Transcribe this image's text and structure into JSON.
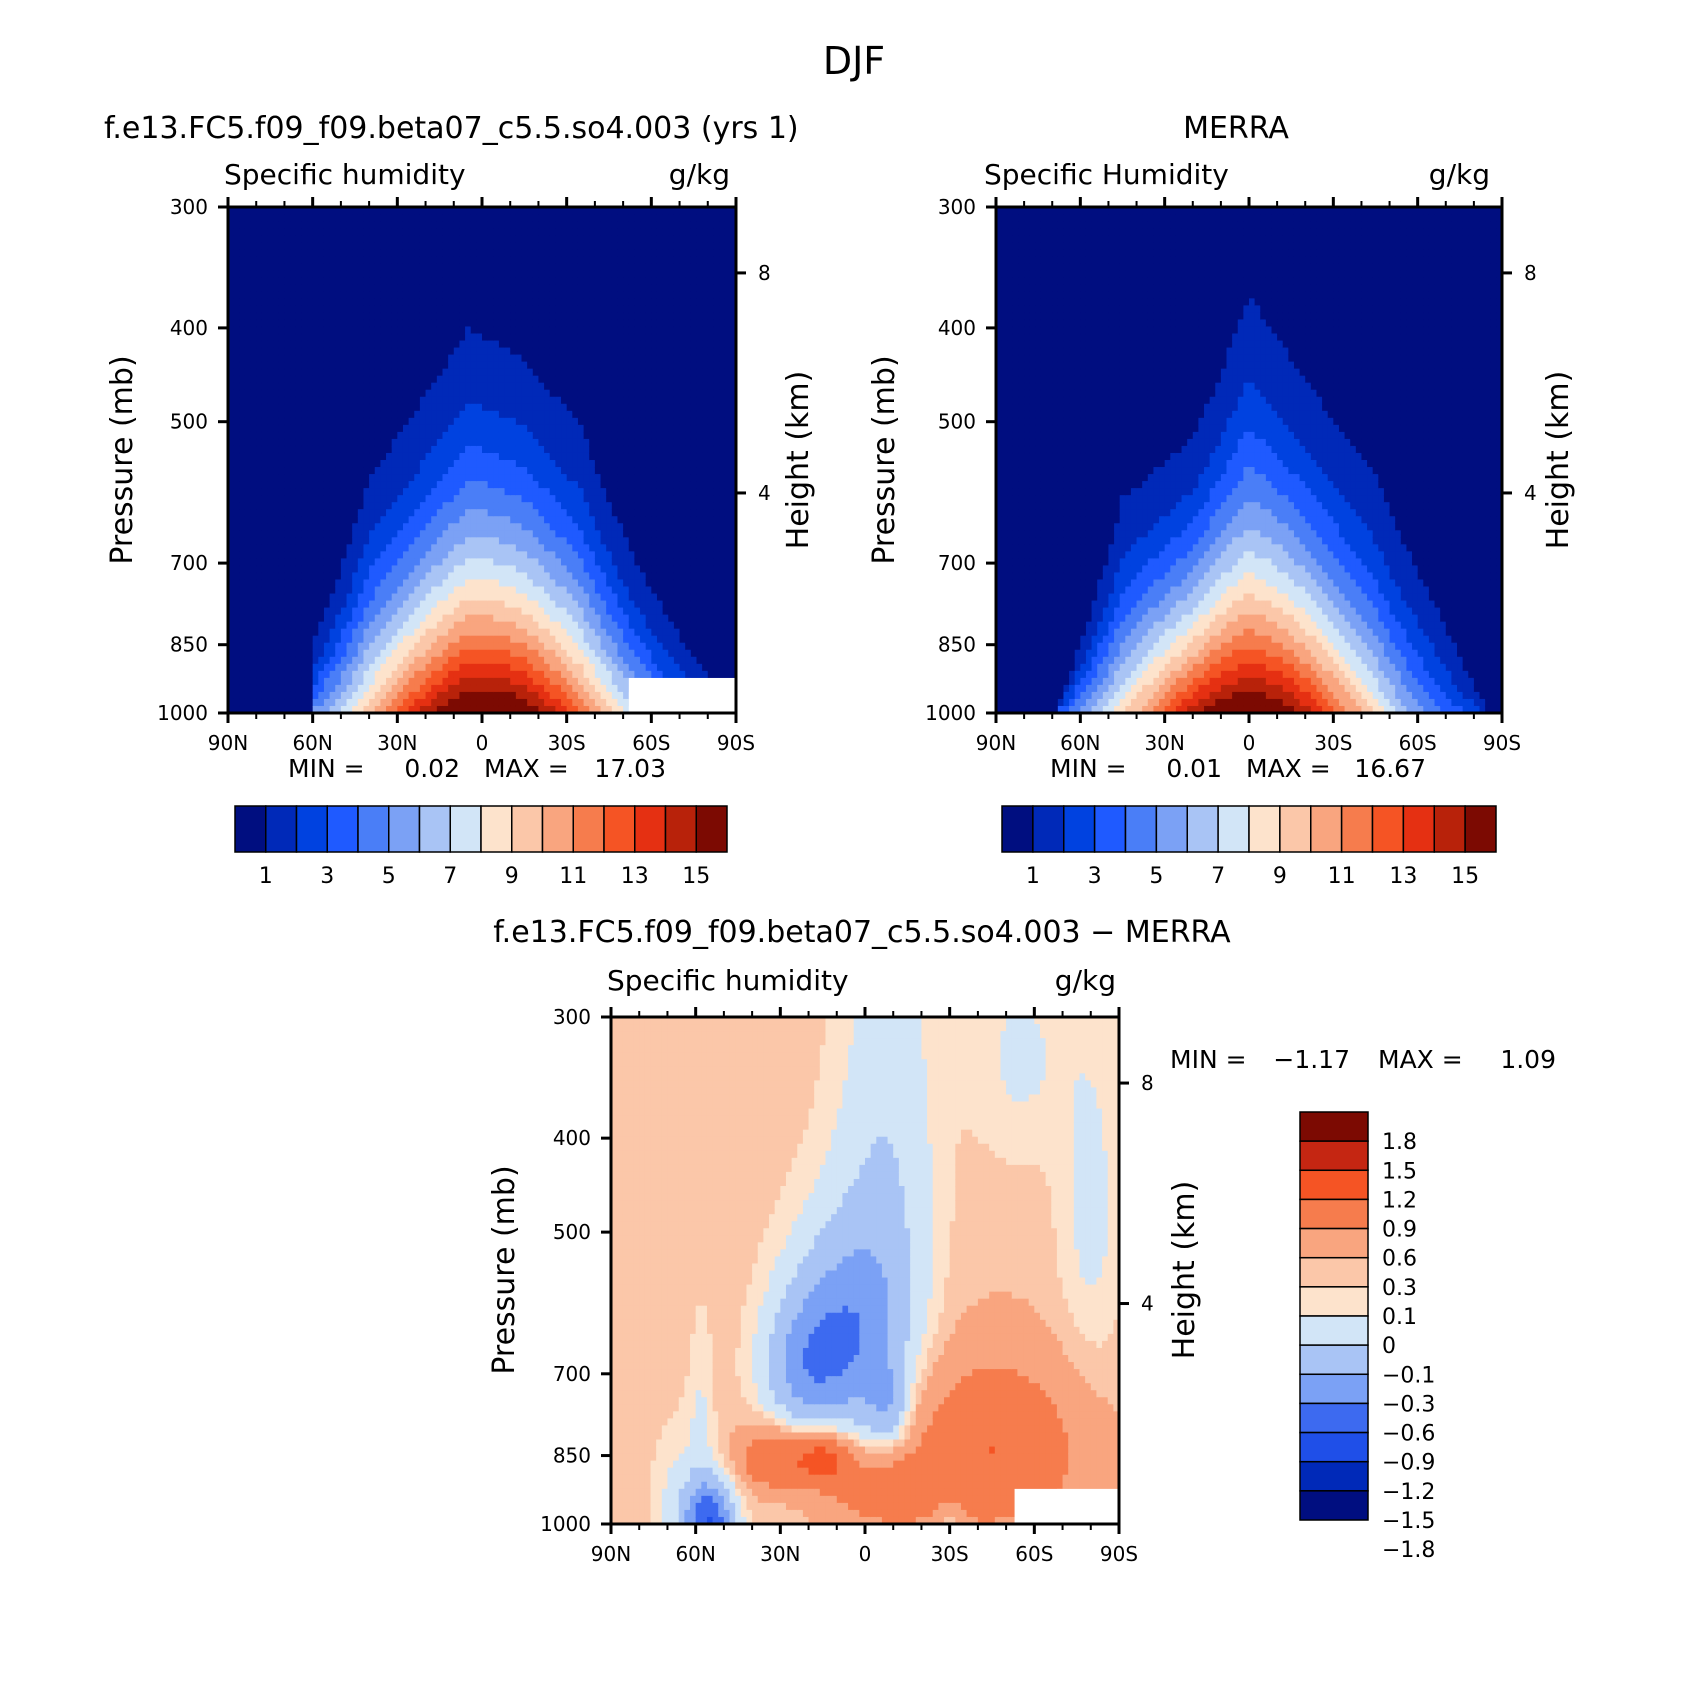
{
  "figure_title": "DJF",
  "colors": {
    "seq": [
      "#000e80",
      "#0029b8",
      "#0042e0",
      "#1f5aff",
      "#4a7ef7",
      "#7ba1f5",
      "#a9c4f5",
      "#d2e5f7",
      "#fde3cc",
      "#fbc7a9",
      "#f9a57f",
      "#f67c4d",
      "#f55424",
      "#e53012",
      "#b8220a",
      "#7c0a02"
    ],
    "div": [
      "#000e80",
      "#0029b8",
      "#1f4fe8",
      "#3d6af0",
      "#7ba1f5",
      "#a9c4f5",
      "#d2e5f7",
      "#fde3cc",
      "#fbc7a9",
      "#f9a57f",
      "#f67c4d",
      "#f55424",
      "#c52612",
      "#7c0a02"
    ]
  },
  "chart_data": [
    {
      "id": "model",
      "type": "heatmap",
      "title": "f.e13.FC5.f09_f09.beta07_c5.5.so4.003 (yrs 1)",
      "left_label": "Specific humidity",
      "right_label": "g/kg",
      "xlabel": "",
      "ylabel": "Pressure (mb)",
      "ylabel_right": "Height (km)",
      "x_ticks": [
        "90N",
        "60N",
        "30N",
        "0",
        "30S",
        "60S",
        "90S"
      ],
      "y_ticks": [
        "300",
        "400",
        "500",
        "700",
        "850",
        "1000"
      ],
      "y_ticks_right": [
        "8",
        "4"
      ],
      "min_label": "MIN =",
      "min_value": "0.02",
      "max_label": "MAX =",
      "max_value": "17.03",
      "colorbar_labels": [
        "1",
        "3",
        "5",
        "7",
        "9",
        "11",
        "13",
        "15"
      ],
      "contour_levels": [
        1,
        2,
        3,
        4,
        5,
        6,
        7,
        8,
        9,
        10,
        11,
        12,
        13,
        14,
        15
      ],
      "peak": 17.03,
      "peak_lat": -2,
      "tops_pressure": [
        {
          "lat": 60,
          "top": 850
        },
        {
          "lat": 40,
          "top": 570
        },
        {
          "lat": 20,
          "top": 470
        },
        {
          "lat": 5,
          "top": 400
        },
        {
          "lat": -15,
          "top": 430
        },
        {
          "lat": -35,
          "top": 505
        },
        {
          "lat": -55,
          "top": 700
        },
        {
          "lat": -80,
          "top": 920
        }
      ],
      "missing": {
        "lat_from": -52,
        "lat_to": -90,
        "p_from": 920,
        "p_to": 1000
      }
    },
    {
      "id": "obs",
      "type": "heatmap",
      "title": "MERRA",
      "left_label": "Specific Humidity",
      "right_label": "g/kg",
      "xlabel": "",
      "ylabel": "Pressure (mb)",
      "ylabel_right": "Height (km)",
      "x_ticks": [
        "90N",
        "60N",
        "30N",
        "0",
        "30S",
        "60S",
        "90S"
      ],
      "y_ticks": [
        "300",
        "400",
        "500",
        "700",
        "850",
        "1000"
      ],
      "y_ticks_right": [
        "8",
        "4"
      ],
      "min_label": "MIN =",
      "min_value": "0.01",
      "max_label": "MAX =",
      "max_value": "16.67",
      "colorbar_labels": [
        "1",
        "3",
        "5",
        "7",
        "9",
        "11",
        "13",
        "15"
      ],
      "contour_levels": [
        1,
        2,
        3,
        4,
        5,
        6,
        7,
        8,
        9,
        10,
        11,
        12,
        13,
        14,
        15
      ],
      "peak": 16.67,
      "peak_lat": 0,
      "tops_pressure": [
        {
          "lat": 68,
          "top": 980
        },
        {
          "lat": 45,
          "top": 600
        },
        {
          "lat": 20,
          "top": 520
        },
        {
          "lat": 0,
          "top": 370
        },
        {
          "lat": -20,
          "top": 450
        },
        {
          "lat": -45,
          "top": 570
        },
        {
          "lat": -65,
          "top": 760
        },
        {
          "lat": -85,
          "top": 990
        }
      ],
      "missing": null
    },
    {
      "id": "diff",
      "type": "heatmap",
      "title": "f.e13.FC5.f09_f09.beta07_c5.5.so4.003 − MERRA",
      "left_label": "Specific humidity",
      "right_label": "g/kg",
      "xlabel": "",
      "ylabel": "Pressure (mb)",
      "ylabel_right": "Height (km)",
      "x_ticks": [
        "90N",
        "60N",
        "30N",
        "0",
        "30S",
        "60S",
        "90S"
      ],
      "y_ticks": [
        "300",
        "400",
        "500",
        "700",
        "850",
        "1000"
      ],
      "y_ticks_right": [
        "8",
        "4"
      ],
      "min_label": "MIN =",
      "min_value": "−1.17",
      "max_label": "MAX =",
      "max_value": "1.09",
      "colorbar_labels": [
        "1.8",
        "1.5",
        "1.2",
        "0.9",
        "0.6",
        "0.3",
        "0.1",
        "0",
        "−0.1",
        "−0.3",
        "−0.6",
        "−0.9",
        "−1.2",
        "−1.5",
        "−1.8"
      ],
      "contour_levels": [
        -1.8,
        -1.5,
        -1.2,
        -0.9,
        -0.6,
        -0.3,
        -0.1,
        0,
        0.1,
        0.3,
        0.6,
        0.9,
        1.2,
        1.5,
        1.8
      ],
      "field": {
        "background": 0.05,
        "blobs": [
          {
            "lat": 5,
            "p": 640,
            "amp": -0.85,
            "slat": 14,
            "sp": 110
          },
          {
            "lat": -8,
            "p": 760,
            "amp": -0.45,
            "slat": 5,
            "sp": 50
          },
          {
            "lat": 22,
            "p": 690,
            "amp": -0.55,
            "slat": 10,
            "sp": 80
          },
          {
            "lat": -8,
            "p": 420,
            "amp": -0.3,
            "slat": 12,
            "sp": 160
          },
          {
            "lat": -55,
            "p": 330,
            "amp": -0.18,
            "slat": 12,
            "sp": 60
          },
          {
            "lat": -80,
            "p": 480,
            "amp": -0.2,
            "slat": 8,
            "sp": 140
          },
          {
            "lat": 15,
            "p": 855,
            "amp": 0.75,
            "slat": 7,
            "sp": 40
          },
          {
            "lat": 33,
            "p": 855,
            "amp": 0.55,
            "slat": 8,
            "sp": 45
          },
          {
            "lat": -45,
            "p": 840,
            "amp": 0.55,
            "slat": 22,
            "sp": 120
          },
          {
            "lat": -5,
            "p": 930,
            "amp": 0.35,
            "slat": 14,
            "sp": 60
          },
          {
            "lat": 55,
            "p": 990,
            "amp": -1.15,
            "slat": 6,
            "sp": 60
          },
          {
            "lat": 65,
            "p": 960,
            "amp": -0.2,
            "slat": 7,
            "sp": 120
          },
          {
            "lat": 58,
            "p": 800,
            "amp": -0.15,
            "slat": 3,
            "sp": 140
          },
          {
            "lat": -30,
            "p": 980,
            "amp": -0.25,
            "slat": 3,
            "sp": 25
          }
        ]
      },
      "missing": {
        "lat_from": -53,
        "lat_to": -90,
        "p_from": 920,
        "p_to": 1000
      }
    }
  ]
}
